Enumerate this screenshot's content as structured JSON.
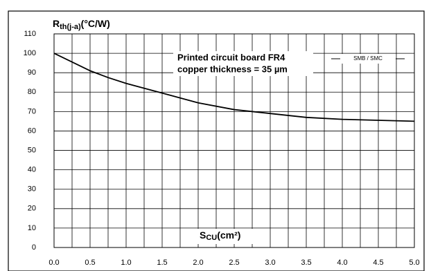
{
  "chart_data": {
    "type": "line",
    "y_label": {
      "main": "R",
      "sub": "th(j-a)",
      "unit": "(°C/W)"
    },
    "x_label": {
      "main": "S",
      "sub": "CU",
      "unit": "(cm²)"
    },
    "annotation": [
      "Printed circuit board FR4",
      "copper thickness = 35 µm"
    ],
    "x": [
      0,
      0.25,
      0.5,
      0.75,
      1,
      1.5,
      2,
      2.5,
      3,
      3.5,
      4,
      4.5,
      5
    ],
    "series": [
      {
        "name": "SMB / SMC",
        "color": "#000000",
        "values": [
          100,
          95.5,
          91,
          87.5,
          84.5,
          79.5,
          74.5,
          71,
          69,
          67,
          66,
          65.5,
          65
        ]
      }
    ],
    "xlim": [
      0,
      5
    ],
    "ylim": [
      0,
      110
    ],
    "xticks": [
      {
        "value": 0,
        "label": "0.0"
      },
      0.5,
      {
        "value": 1,
        "label": "1.0"
      },
      1.5,
      {
        "value": 2,
        "label": "2.0"
      },
      2.5,
      {
        "value": 3,
        "label": "3.0"
      },
      3.5,
      {
        "value": 4,
        "label": "4.0"
      },
      4.5,
      {
        "value": 5,
        "label": "5.0"
      }
    ],
    "xminor": [
      0.25,
      0.75,
      1.25,
      1.75,
      2.25,
      2.75,
      3.25,
      3.75,
      4.25,
      4.75
    ],
    "yticks": [
      0,
      10,
      20,
      30,
      40,
      50,
      60,
      70,
      80,
      90,
      100,
      110
    ],
    "grid": true
  }
}
